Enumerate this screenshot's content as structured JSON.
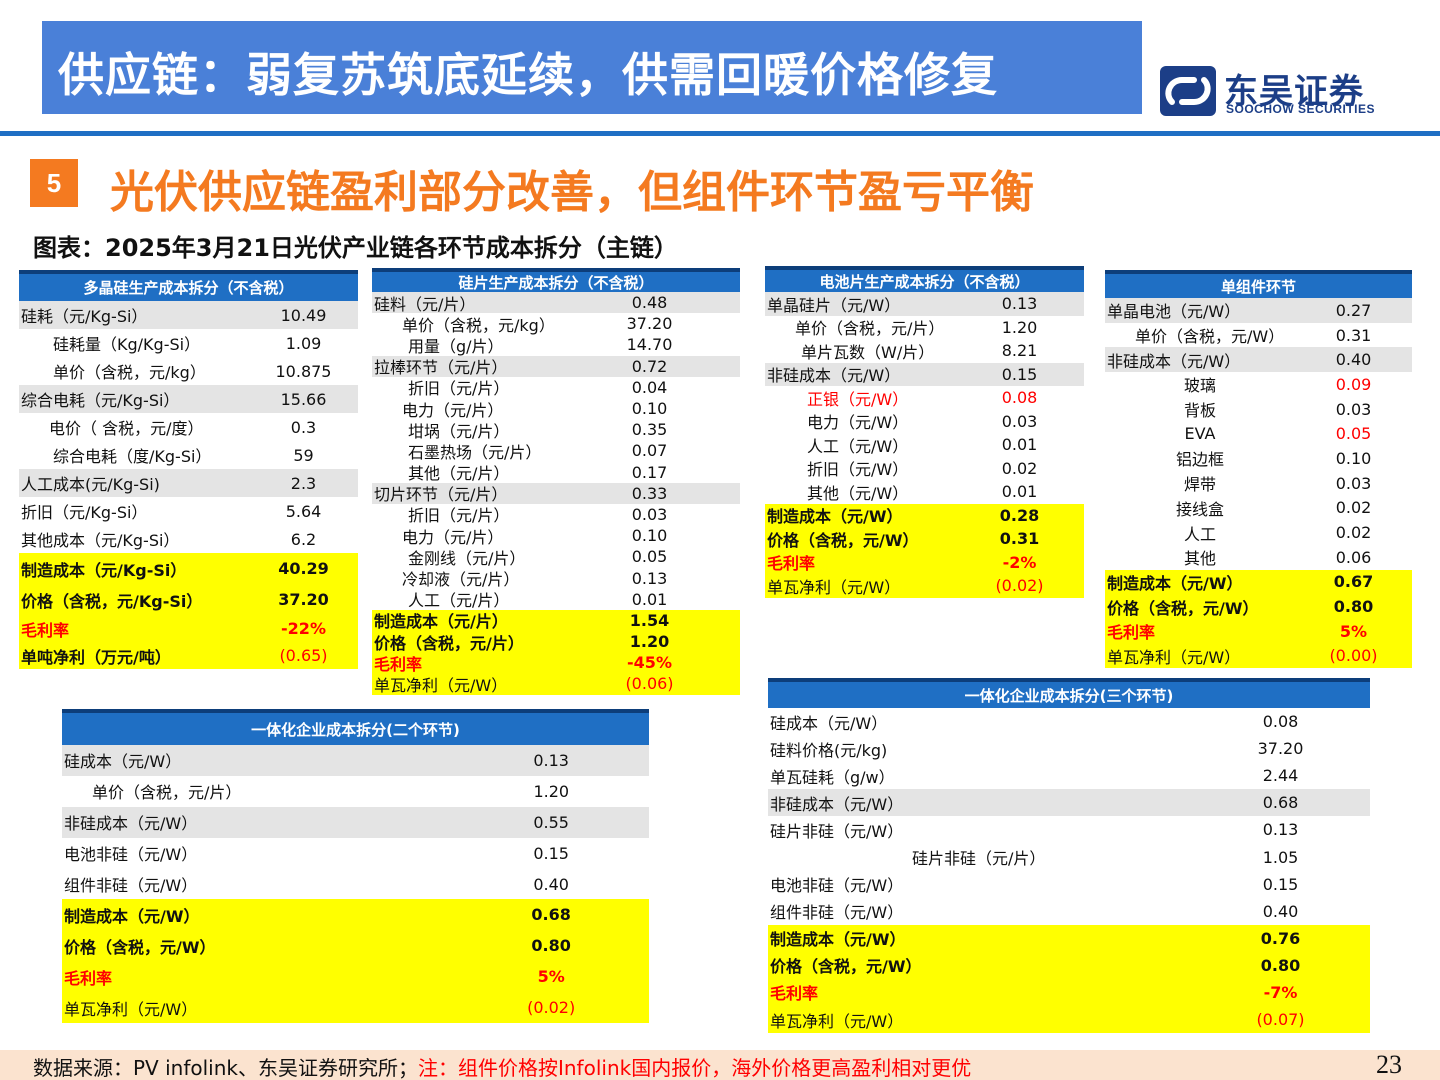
{
  "header": {
    "title": "供应链：弱复苏筑底延续，供需回暖价格修复",
    "logo_cn": "东吴证券",
    "logo_en": "SOOCHOW SECURITIES"
  },
  "section": {
    "number": "5",
    "title": "光伏供应链盈利部分改善，但组件环节盈亏平衡"
  },
  "figure_title": "图表：2025年3月21日光伏产业链各环节成本拆分（主链）",
  "tables": {
    "poly": {
      "title": "多晶硅生产成本拆分（不含税）",
      "rows": [
        {
          "label": "硅耗（元/Kg-Si）",
          "value": "10.49"
        },
        {
          "label": "硅耗量（Kg/Kg-Si）",
          "value": "1.09"
        },
        {
          "label": "单价（含税，元/kg）",
          "value": "10.875"
        },
        {
          "label": "综合电耗（元/Kg-Si）",
          "value": "15.66"
        },
        {
          "label": "电价（ 含税，元/度）",
          "value": "0.3"
        },
        {
          "label": "综合电耗（度/Kg-Si）",
          "value": "59"
        },
        {
          "label": "人工成本(元/Kg-Si)",
          "value": "2.3"
        },
        {
          "label": "折旧（元/Kg-Si）",
          "value": "5.64"
        },
        {
          "label": "其他成本（元/Kg-Si）",
          "value": "6.2"
        },
        {
          "label": "制造成本（元/Kg-Si）",
          "value": "40.29"
        },
        {
          "label": "价格（含税，元/Kg-Si）",
          "value": "37.20"
        },
        {
          "label": "毛利率",
          "value": "-22%"
        },
        {
          "label": "单吨净利（万元/吨）",
          "value": "(0.65)"
        }
      ]
    },
    "wafer": {
      "title": "硅片生产成本拆分（不含税）",
      "rows": [
        {
          "label": "硅料（元/片）",
          "value": "0.48"
        },
        {
          "label": "单价（含税，元/kg）",
          "value": "37.20"
        },
        {
          "label": "用量（g/片）",
          "value": "14.70"
        },
        {
          "label": "拉棒环节（元/片）",
          "value": "0.72"
        },
        {
          "label": "折旧（元/片）",
          "value": "0.04"
        },
        {
          "label": "电力（元/片）",
          "value": "0.10"
        },
        {
          "label": "坩埚（元/片）",
          "value": "0.35"
        },
        {
          "label": "石墨热场（元/片）",
          "value": "0.07"
        },
        {
          "label": "其他（元/片）",
          "value": "0.17"
        },
        {
          "label": "切片环节（元/片）",
          "value": "0.33"
        },
        {
          "label": "折旧（元/片）",
          "value": "0.03"
        },
        {
          "label": "电力（元/片）",
          "value": "0.10"
        },
        {
          "label": "金刚线（元/片）",
          "value": "0.05"
        },
        {
          "label": "冷却液（元/片）",
          "value": "0.13"
        },
        {
          "label": "人工（元/片）",
          "value": "0.01"
        },
        {
          "label": "制造成本（元/片）",
          "value": "1.54"
        },
        {
          "label": "价格（含税，元/片）",
          "value": "1.20"
        },
        {
          "label": "毛利率",
          "value": "-45%"
        },
        {
          "label": "单瓦净利（元/W）",
          "value": "(0.06)"
        }
      ]
    },
    "cell": {
      "title": "电池片生产成本拆分（不含税）",
      "rows": [
        {
          "label": "单晶硅片（元/W）",
          "value": "0.13"
        },
        {
          "label": "单价（含税，元/片）",
          "value": "1.20"
        },
        {
          "label": "单片瓦数（W/片）",
          "value": "8.21"
        },
        {
          "label": "非硅成本（元/W）",
          "value": "0.15"
        },
        {
          "label": "正银（元/W）",
          "value": "0.08"
        },
        {
          "label": "电力（元/W）",
          "value": "0.03"
        },
        {
          "label": "人工（元/W）",
          "value": "0.01"
        },
        {
          "label": "折旧（元/W）",
          "value": "0.02"
        },
        {
          "label": "其他（元/W）",
          "value": "0.01"
        },
        {
          "label": "制造成本（元/W）",
          "value": "0.28"
        },
        {
          "label": "价格（含税，元/W）",
          "value": "0.31"
        },
        {
          "label": "毛利率",
          "value": "-2%"
        },
        {
          "label": "单瓦净利（元/W）",
          "value": "(0.02)"
        }
      ]
    },
    "module": {
      "title": "单组件环节",
      "rows": [
        {
          "label": "单晶电池（元/W）",
          "value": "0.27"
        },
        {
          "label": "单价（含税，元/W）",
          "value": "0.31"
        },
        {
          "label": "非硅成本（元/W）",
          "value": "0.40"
        },
        {
          "label": "玻璃",
          "value": "0.09"
        },
        {
          "label": "背板",
          "value": "0.03"
        },
        {
          "label": "EVA",
          "value": "0.05"
        },
        {
          "label": "铝边框",
          "value": "0.10"
        },
        {
          "label": "焊带",
          "value": "0.03"
        },
        {
          "label": "接线盒",
          "value": "0.02"
        },
        {
          "label": "人工",
          "value": "0.02"
        },
        {
          "label": "其他",
          "value": "0.06"
        },
        {
          "label": "制造成本（元/W）",
          "value": "0.67"
        },
        {
          "label": "价格（含税，元/W）",
          "value": "0.80"
        },
        {
          "label": "毛利率",
          "value": "5%"
        },
        {
          "label": "单瓦净利（元/W）",
          "value": "(0.00)"
        }
      ]
    },
    "integrated2": {
      "title": "一体化企业成本拆分(二个环节)",
      "rows": [
        {
          "label": "硅成本（元/W）",
          "value": "0.13"
        },
        {
          "label": "单价（含税，元/片）",
          "value": "1.20"
        },
        {
          "label": "非硅成本（元/W）",
          "value": "0.55"
        },
        {
          "label": "电池非硅（元/W）",
          "value": "0.15"
        },
        {
          "label": "组件非硅（元/W）",
          "value": "0.40"
        },
        {
          "label": "制造成本（元/W）",
          "value": "0.68"
        },
        {
          "label": "价格（含税，元/W）",
          "value": "0.80"
        },
        {
          "label": "毛利率",
          "value": "5%"
        },
        {
          "label": "单瓦净利（元/W）",
          "value": "(0.02)"
        }
      ]
    },
    "integrated3": {
      "title": "一体化企业成本拆分(三个环节)",
      "rows": [
        {
          "label": "硅成本（元/W）",
          "value": "0.08"
        },
        {
          "label": "硅料价格(元/kg)",
          "value": "37.20"
        },
        {
          "label": "单瓦硅耗（g/w）",
          "value": "2.44"
        },
        {
          "label": "非硅成本（元/W）",
          "value": "0.68"
        },
        {
          "label": "硅片非硅（元/W）",
          "value": "0.13"
        },
        {
          "label": "硅片非硅（元/片）",
          "value": "1.05"
        },
        {
          "label": "电池非硅（元/W）",
          "value": "0.15"
        },
        {
          "label": "组件非硅（元/W）",
          "value": "0.40"
        },
        {
          "label": "制造成本（元/W）",
          "value": "0.76"
        },
        {
          "label": "价格（含税，元/W）",
          "value": "0.80"
        },
        {
          "label": "毛利率",
          "value": "-7%"
        },
        {
          "label": "单瓦净利（元/W）",
          "value": "(0.07)"
        }
      ]
    }
  },
  "footer": {
    "source": "数据来源：PV infolink、东吴证券研究所；",
    "note": "注：组件价格按Infolink国内报价，海外价格更高盈利相对更优",
    "page": "23"
  },
  "colors": {
    "header_bg": "#4a80d8",
    "table_head": "#1f6fc4",
    "highlight": "#ffff00",
    "accent_orange": "#f47a20",
    "negative_red": "#ff0000"
  }
}
